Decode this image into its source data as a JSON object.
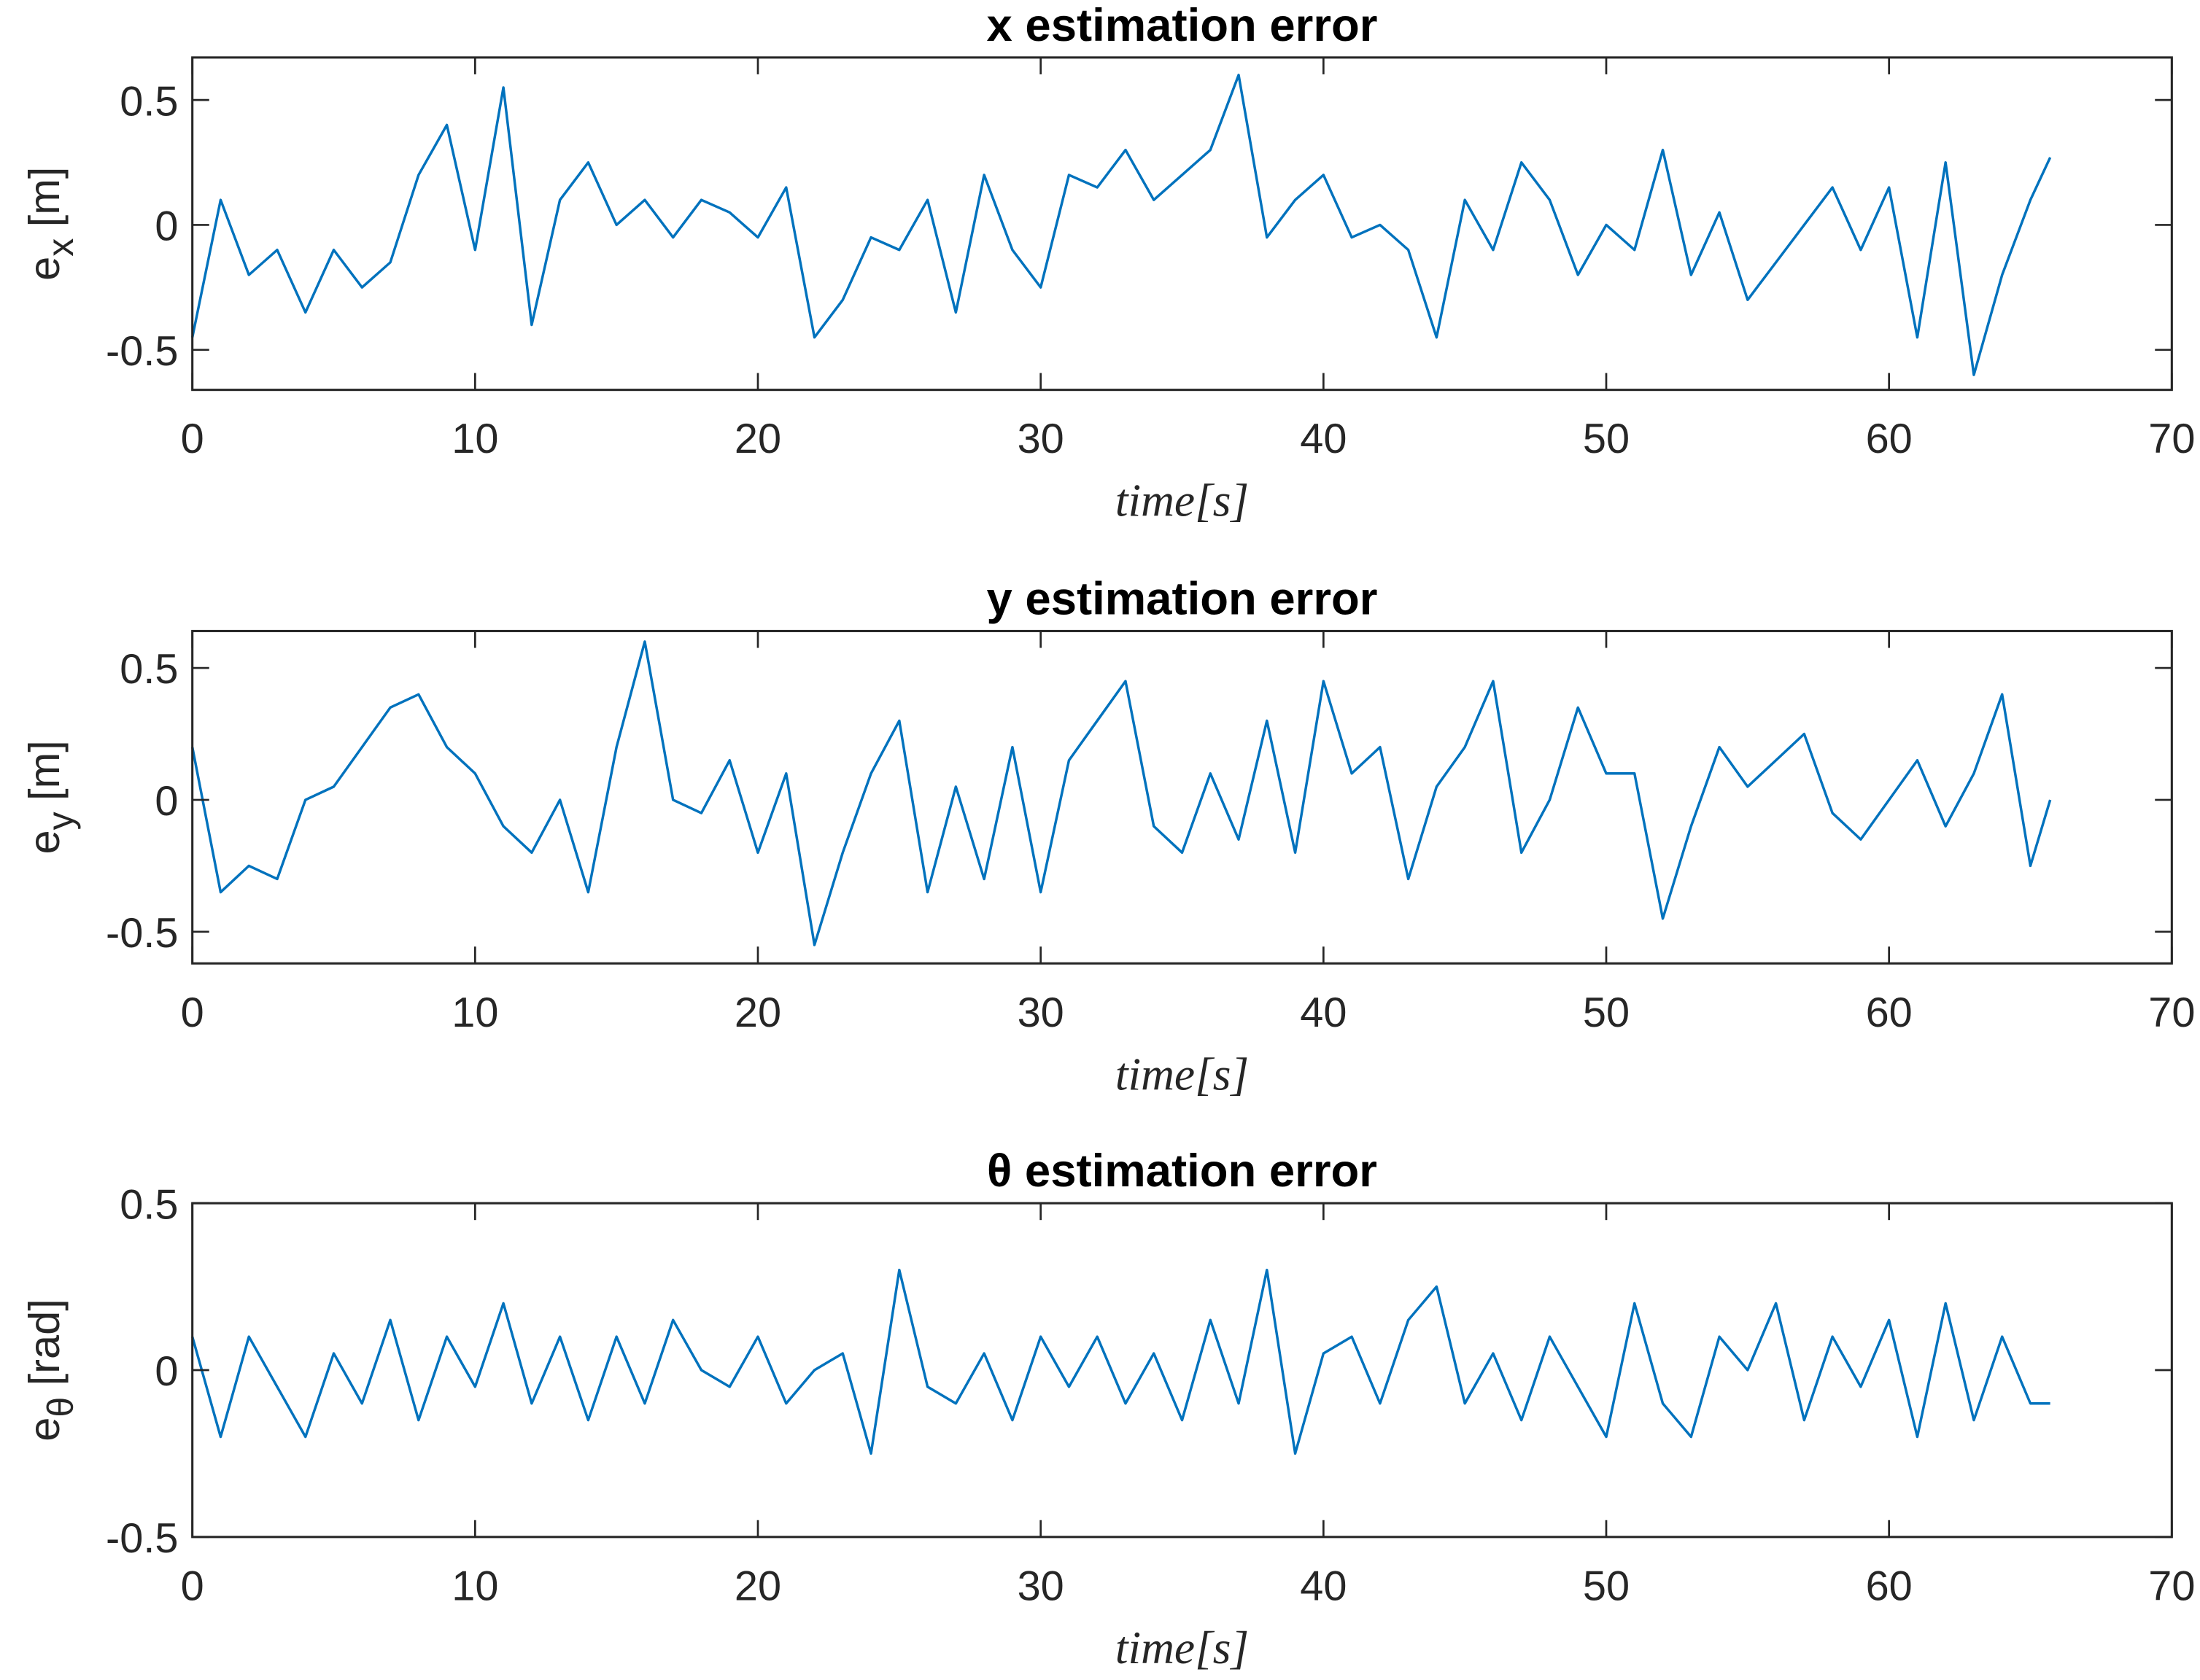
{
  "chart_data": [
    {
      "type": "line",
      "title": "x estimation error",
      "xlabel": "time[s]",
      "ylabel": {
        "main": "e",
        "sub": "x",
        "unit": "[m]"
      },
      "xlim": [
        0,
        70
      ],
      "xticks": [
        0,
        10,
        20,
        30,
        40,
        50,
        60,
        70
      ],
      "ylim": [
        -0.66,
        0.67
      ],
      "yticks": [
        -0.5,
        0,
        0.5
      ],
      "color": "#0072bd",
      "x": [
        0,
        1,
        2,
        3,
        4,
        5,
        6,
        7,
        8,
        9,
        10,
        11,
        12,
        13,
        14,
        15,
        16,
        17,
        18,
        19,
        20,
        21,
        22,
        23,
        24,
        25,
        26,
        27,
        28,
        29,
        30,
        31,
        32,
        33,
        34,
        35,
        36,
        37,
        38,
        39,
        40,
        41,
        42,
        43,
        44,
        45,
        46,
        47,
        48,
        49,
        50,
        51,
        52,
        53,
        54,
        55,
        56,
        57,
        58,
        59,
        60,
        61,
        62,
        63,
        64,
        65,
        65.7
      ],
      "values": [
        -0.45,
        0.1,
        -0.2,
        -0.1,
        -0.35,
        -0.1,
        -0.25,
        -0.15,
        0.2,
        0.4,
        -0.1,
        0.55,
        -0.4,
        0.1,
        0.25,
        0,
        0.1,
        -0.05,
        0.1,
        0.05,
        -0.05,
        0.15,
        -0.45,
        -0.3,
        -0.05,
        -0.1,
        0.1,
        -0.35,
        0.2,
        -0.1,
        -0.25,
        0.2,
        0.15,
        0.3,
        0.1,
        0.2,
        0.3,
        0.6,
        -0.05,
        0.1,
        0.2,
        -0.05,
        0,
        -0.1,
        -0.45,
        0.1,
        -0.1,
        0.25,
        0.1,
        -0.2,
        0,
        -0.1,
        0.3,
        -0.2,
        0.05,
        -0.3,
        -0.15,
        0,
        0.15,
        -0.1,
        0.15,
        -0.45,
        0.25,
        -0.6,
        -0.2,
        0.1,
        0.27
      ]
    },
    {
      "type": "line",
      "title": "y estimation error",
      "xlabel": "time[s]",
      "ylabel": {
        "main": "e",
        "sub": "y",
        "unit": "[m]"
      },
      "xlim": [
        0,
        70
      ],
      "xticks": [
        0,
        10,
        20,
        30,
        40,
        50,
        60,
        70
      ],
      "ylim": [
        -0.62,
        0.64
      ],
      "yticks": [
        -0.5,
        0,
        0.5
      ],
      "color": "#0072bd",
      "x": [
        0,
        1,
        2,
        3,
        4,
        5,
        6,
        7,
        8,
        9,
        10,
        11,
        12,
        13,
        14,
        15,
        16,
        17,
        18,
        19,
        20,
        21,
        22,
        23,
        24,
        25,
        26,
        27,
        28,
        29,
        30,
        31,
        32,
        33,
        34,
        35,
        36,
        37,
        38,
        39,
        40,
        41,
        42,
        43,
        44,
        45,
        46,
        47,
        48,
        49,
        50,
        51,
        52,
        53,
        54,
        55,
        56,
        57,
        58,
        59,
        60,
        61,
        62,
        63,
        64,
        65,
        65.7
      ],
      "values": [
        0.2,
        -0.35,
        -0.25,
        -0.3,
        0,
        0.05,
        0.2,
        0.35,
        0.4,
        0.2,
        0.1,
        -0.1,
        -0.2,
        0,
        -0.35,
        0.2,
        0.6,
        0,
        -0.05,
        0.15,
        -0.2,
        0.1,
        -0.55,
        -0.2,
        0.1,
        0.3,
        -0.35,
        0.05,
        -0.3,
        0.2,
        -0.35,
        0.15,
        0.3,
        0.45,
        -0.1,
        -0.2,
        0.1,
        -0.15,
        0.3,
        -0.2,
        0.45,
        0.1,
        0.2,
        -0.3,
        0.05,
        0.2,
        0.45,
        -0.2,
        0,
        0.35,
        0.1,
        0.1,
        -0.45,
        -0.1,
        0.2,
        0.05,
        0.15,
        0.25,
        -0.05,
        -0.15,
        0,
        0.15,
        -0.1,
        0.1,
        0.4,
        -0.25,
        0
      ]
    },
    {
      "type": "line",
      "title": "θ estimation error",
      "xlabel": "time[s]",
      "ylabel": {
        "main": "e",
        "sub": "θ",
        "unit": "[rad]"
      },
      "xlim": [
        0,
        70
      ],
      "xticks": [
        0,
        10,
        20,
        30,
        40,
        50,
        60,
        70
      ],
      "ylim": [
        -0.5,
        0.5
      ],
      "yticks": [
        -0.5,
        0,
        0.5
      ],
      "color": "#0072bd",
      "x": [
        0,
        1,
        2,
        3,
        4,
        5,
        6,
        7,
        8,
        9,
        10,
        11,
        12,
        13,
        14,
        15,
        16,
        17,
        18,
        19,
        20,
        21,
        22,
        23,
        24,
        25,
        26,
        27,
        28,
        29,
        30,
        31,
        32,
        33,
        34,
        35,
        36,
        37,
        38,
        39,
        40,
        41,
        42,
        43,
        44,
        45,
        46,
        47,
        48,
        49,
        50,
        51,
        52,
        53,
        54,
        55,
        56,
        57,
        58,
        59,
        60,
        61,
        62,
        63,
        64,
        65,
        65.7
      ],
      "values": [
        0.1,
        -0.2,
        0.1,
        -0.05,
        -0.2,
        0.05,
        -0.1,
        0.15,
        -0.15,
        0.1,
        -0.05,
        0.2,
        -0.1,
        0.1,
        -0.15,
        0.1,
        -0.1,
        0.15,
        0,
        -0.05,
        0.1,
        -0.1,
        0,
        0.05,
        -0.25,
        0.3,
        -0.05,
        -0.1,
        0.05,
        -0.15,
        0.1,
        -0.05,
        0.1,
        -0.1,
        0.05,
        -0.15,
        0.15,
        -0.1,
        0.3,
        -0.25,
        0.05,
        0.1,
        -0.1,
        0.15,
        0.25,
        -0.1,
        0.05,
        -0.15,
        0.1,
        -0.05,
        -0.2,
        0.2,
        -0.1,
        -0.2,
        0.1,
        0,
        0.2,
        -0.15,
        0.1,
        -0.05,
        0.15,
        -0.2,
        0.2,
        -0.15,
        0.1,
        -0.1,
        -0.1
      ]
    }
  ]
}
